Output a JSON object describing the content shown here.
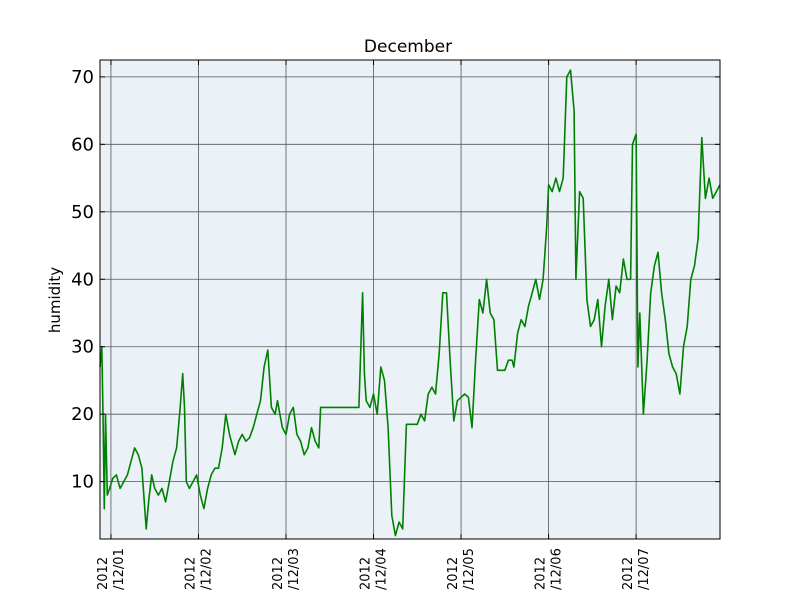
{
  "chart_data": {
    "type": "line",
    "title": "December",
    "xlabel": "",
    "ylabel": "humidity",
    "grid": true,
    "xlim": [
      "2012-11-30T21:00",
      "2012-12-07T23:00"
    ],
    "ylim": [
      1.5,
      72.5
    ],
    "y_ticks": [
      10,
      20,
      30,
      40,
      50,
      60,
      70
    ],
    "x_ticks": [
      {
        "x": "2012-12-01T00:00",
        "line1": "2012",
        "line2": "/12/01"
      },
      {
        "x": "2012-12-02T00:00",
        "line1": "2012",
        "line2": "/12/02"
      },
      {
        "x": "2012-12-03T00:00",
        "line1": "2012",
        "line2": "/12/03"
      },
      {
        "x": "2012-12-04T00:00",
        "line1": "2012",
        "line2": "/12/04"
      },
      {
        "x": "2012-12-05T00:00",
        "line1": "2012",
        "line2": "/12/05"
      },
      {
        "x": "2012-12-06T00:00",
        "line1": "2012",
        "line2": "/12/06"
      },
      {
        "x": "2012-12-07T00:00",
        "line1": "2012",
        "line2": "/12/07"
      }
    ],
    "colors": {
      "line": "#008000",
      "plot_bg": "#eaf2f8",
      "grid": "#000000"
    },
    "series": [
      {
        "x": [
          "2012-11-30T21:00",
          "2012-11-30T21:30",
          "2012-11-30T21:50",
          "2012-11-30T22:10",
          "2012-11-30T22:30",
          "2012-11-30T23:00",
          "2012-11-30T23:40",
          "2012-12-01T00:30",
          "2012-12-01T01:30",
          "2012-12-01T02:30",
          "2012-12-01T03:30",
          "2012-12-01T04:30",
          "2012-12-01T05:30",
          "2012-12-01T06:30",
          "2012-12-01T07:30",
          "2012-12-01T08:30",
          "2012-12-01T09:00",
          "2012-12-01T09:40",
          "2012-12-01T10:20",
          "2012-12-01T11:10",
          "2012-12-01T12:00",
          "2012-12-01T13:00",
          "2012-12-01T14:00",
          "2012-12-01T15:00",
          "2012-12-01T16:00",
          "2012-12-01T17:00",
          "2012-12-01T18:00",
          "2012-12-01T19:00",
          "2012-12-01T19:40",
          "2012-12-01T20:10",
          "2012-12-01T20:40",
          "2012-12-01T21:30",
          "2012-12-01T22:30",
          "2012-12-01T23:30",
          "2012-12-02T00:30",
          "2012-12-02T01:30",
          "2012-12-02T02:30",
          "2012-12-02T03:30",
          "2012-12-02T04:30",
          "2012-12-02T05:30",
          "2012-12-02T06:30",
          "2012-12-02T07:30",
          "2012-12-02T08:30",
          "2012-12-02T09:00",
          "2012-12-02T10:00",
          "2012-12-02T11:00",
          "2012-12-02T12:00",
          "2012-12-02T13:00",
          "2012-12-02T14:00",
          "2012-12-02T15:00",
          "2012-12-02T16:00",
          "2012-12-02T17:00",
          "2012-12-02T18:00",
          "2012-12-02T19:00",
          "2012-12-02T20:00",
          "2012-12-02T21:00",
          "2012-12-02T21:40",
          "2012-12-02T22:20",
          "2012-12-02T23:00",
          "2012-12-03T00:00",
          "2012-12-03T01:00",
          "2012-12-03T02:00",
          "2012-12-03T03:00",
          "2012-12-03T04:00",
          "2012-12-03T05:00",
          "2012-12-03T06:00",
          "2012-12-03T07:00",
          "2012-12-03T08:00",
          "2012-12-03T09:00",
          "2012-12-03T09:30",
          "2012-12-03T13:00",
          "2012-12-03T18:00",
          "2012-12-03T20:00",
          "2012-12-03T21:00",
          "2012-12-03T21:30",
          "2012-12-03T22:00",
          "2012-12-03T23:00",
          "2012-12-04T00:00",
          "2012-12-04T01:00",
          "2012-12-04T02:00",
          "2012-12-04T03:00",
          "2012-12-04T04:00",
          "2012-12-04T05:00",
          "2012-12-04T06:00",
          "2012-12-04T07:00",
          "2012-12-04T08:00",
          "2012-12-04T09:00",
          "2012-12-04T12:00",
          "2012-12-04T13:00",
          "2012-12-04T14:00",
          "2012-12-04T15:00",
          "2012-12-04T16:00",
          "2012-12-04T17:00",
          "2012-12-04T18:00",
          "2012-12-04T19:00",
          "2012-12-04T20:00",
          "2012-12-04T21:00",
          "2012-12-04T22:00",
          "2012-12-04T23:00",
          "2012-12-05T00:00",
          "2012-12-05T01:00",
          "2012-12-05T02:00",
          "2012-12-05T03:00",
          "2012-12-05T04:00",
          "2012-12-05T05:00",
          "2012-12-05T06:00",
          "2012-12-05T07:00",
          "2012-12-05T08:00",
          "2012-12-05T09:00",
          "2012-12-05T10:00",
          "2012-12-05T11:00",
          "2012-12-05T12:00",
          "2012-12-05T13:00",
          "2012-12-05T14:00",
          "2012-12-05T14:30",
          "2012-12-05T15:30",
          "2012-12-05T16:30",
          "2012-12-05T17:30",
          "2012-12-05T18:30",
          "2012-12-05T19:30",
          "2012-12-05T20:30",
          "2012-12-05T21:30",
          "2012-12-05T22:30",
          "2012-12-05T23:30",
          "2012-12-06T00:00",
          "2012-12-06T01:00",
          "2012-12-06T02:00",
          "2012-12-06T03:00",
          "2012-12-06T04:00",
          "2012-12-06T05:00",
          "2012-12-06T06:00",
          "2012-12-06T07:00",
          "2012-12-06T07:30",
          "2012-12-06T08:30",
          "2012-12-06T09:30",
          "2012-12-06T10:30",
          "2012-12-06T11:30",
          "2012-12-06T12:30",
          "2012-12-06T13:30",
          "2012-12-06T14:30",
          "2012-12-06T15:30",
          "2012-12-06T16:30",
          "2012-12-06T17:30",
          "2012-12-06T18:30",
          "2012-12-06T19:30",
          "2012-12-06T20:30",
          "2012-12-06T21:30",
          "2012-12-06T22:30",
          "2012-12-06T23:00",
          "2012-12-07T00:00",
          "2012-12-07T00:30",
          "2012-12-07T01:00",
          "2012-12-07T02:00",
          "2012-12-07T03:00",
          "2012-12-07T04:00",
          "2012-12-07T05:00",
          "2012-12-07T06:00",
          "2012-12-07T07:00",
          "2012-12-07T08:00",
          "2012-12-07T09:00",
          "2012-12-07T10:00",
          "2012-12-07T11:00",
          "2012-12-07T12:00",
          "2012-12-07T13:00",
          "2012-12-07T14:00",
          "2012-12-07T15:00",
          "2012-12-07T16:00",
          "2012-12-07T17:00",
          "2012-12-07T18:00",
          "2012-12-07T19:00",
          "2012-12-07T20:00",
          "2012-12-07T21:00",
          "2012-12-07T22:00",
          "2012-12-07T23:00"
        ],
        "y": [
          27,
          30,
          20,
          6,
          20,
          8,
          9,
          10.5,
          11,
          9,
          10,
          11,
          13,
          15,
          14,
          12,
          8,
          3,
          7,
          11,
          9,
          8,
          9,
          7,
          10,
          13,
          15,
          21,
          26,
          21,
          10,
          9,
          10,
          11,
          8,
          6,
          9,
          11,
          12,
          12,
          15,
          20,
          17,
          16,
          14,
          16,
          17,
          16,
          16.5,
          18,
          20,
          22,
          27,
          29.5,
          21,
          20,
          22,
          20,
          18,
          17,
          20,
          21,
          17,
          16,
          14,
          15,
          18,
          16,
          15,
          21,
          21,
          21,
          21,
          38,
          26,
          22,
          21,
          23,
          20,
          27,
          25,
          18,
          5,
          2,
          4,
          3,
          18.5,
          18.5,
          20,
          19,
          23,
          24,
          23,
          29,
          38,
          38,
          28,
          19,
          22,
          22.5,
          23,
          22.5,
          18,
          28,
          37,
          35,
          40,
          35,
          34,
          26.5,
          26.5,
          26.5,
          28,
          28,
          27,
          32,
          34,
          33,
          36,
          38,
          40,
          37,
          40,
          48,
          54,
          53,
          55,
          53,
          55,
          70,
          71,
          65,
          40,
          53,
          52,
          37,
          33,
          34,
          37,
          30,
          36,
          40,
          34,
          39,
          38,
          43,
          40,
          40,
          60,
          61.5,
          27,
          35,
          20,
          28,
          38,
          42,
          44,
          38,
          34,
          29,
          27,
          26,
          23,
          30,
          33,
          40,
          42,
          46,
          61,
          52,
          55,
          52,
          53,
          54
        ]
      }
    ]
  }
}
